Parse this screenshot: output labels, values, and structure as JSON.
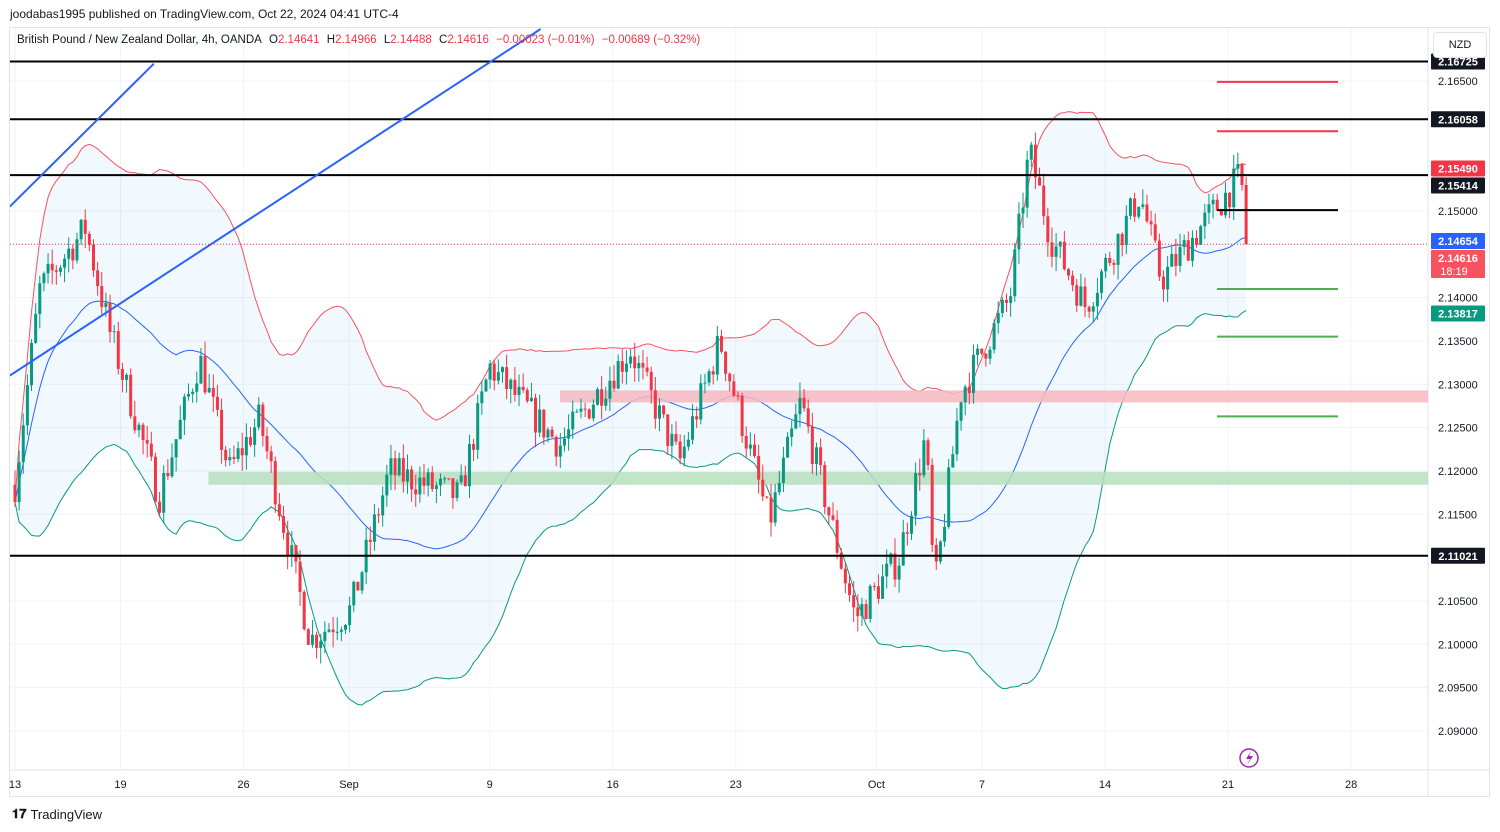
{
  "header": {
    "published": "joodabas1995 published on TradingView.com, Oct 22, 2024 04:41 UTC-4"
  },
  "legend": {
    "symbol": "British Pound / New Zealand Dollar, 4h, OANDA",
    "o_label": "O",
    "o": "2.14641",
    "h_label": "H",
    "h": "2.14966",
    "l_label": "L",
    "l": "2.14488",
    "c_label": "C",
    "c": "2.14616",
    "change": "−0.00023 (−0.01%)",
    "change2": "−0.00689 (−0.32%)"
  },
  "currency_button": "NZD",
  "footer": {
    "brand": "TradingView"
  },
  "chart_data": {
    "type": "candlestick",
    "title": "British Pound / New Zealand Dollar, 4h, OANDA",
    "ylim": [
      2.0875,
      2.1725
    ],
    "y_ticks": [
      "2.16500",
      "2.15000",
      "2.14000",
      "2.13500",
      "2.13000",
      "2.12500",
      "2.12000",
      "2.11500",
      "2.10500",
      "2.10000",
      "2.09500",
      "2.09000"
    ],
    "y_tick_values": [
      2.165,
      2.15,
      2.14,
      2.135,
      2.13,
      2.125,
      2.12,
      2.115,
      2.105,
      2.1,
      2.095,
      2.09
    ],
    "x_ticks": [
      {
        "label": "13",
        "day": 0
      },
      {
        "label": "19",
        "day": 6
      },
      {
        "label": "26",
        "day": 13
      },
      {
        "label": "Sep",
        "day": 19
      },
      {
        "label": "9",
        "day": 27
      },
      {
        "label": "16",
        "day": 34
      },
      {
        "label": "23",
        "day": 41
      },
      {
        "label": "Oct",
        "day": 49
      },
      {
        "label": "7",
        "day": 55
      },
      {
        "label": "14",
        "day": 62
      },
      {
        "label": "21",
        "day": 69
      },
      {
        "label": "28",
        "day": 76
      }
    ],
    "price_path_waypoints": [
      [
        0,
        2.1184
      ],
      [
        1.4,
        2.1409
      ],
      [
        4.0,
        2.148
      ],
      [
        5.4,
        2.136
      ],
      [
        8.2,
        2.117
      ],
      [
        10.5,
        2.133
      ],
      [
        12.2,
        2.12
      ],
      [
        13.9,
        2.126
      ],
      [
        16.8,
        2.1005
      ],
      [
        19.1,
        2.104
      ],
      [
        21.3,
        2.12
      ],
      [
        25.3,
        2.117
      ],
      [
        27.0,
        2.132
      ],
      [
        31.0,
        2.123
      ],
      [
        35.0,
        2.134
      ],
      [
        37.8,
        2.121
      ],
      [
        40.1,
        2.135
      ],
      [
        42.9,
        2.114
      ],
      [
        44.7,
        2.128
      ],
      [
        47.8,
        2.103
      ],
      [
        50.3,
        2.11
      ],
      [
        51.8,
        2.124
      ],
      [
        52.3,
        2.106
      ],
      [
        53.8,
        2.129
      ],
      [
        56.6,
        2.14
      ],
      [
        57.7,
        2.157
      ],
      [
        58.9,
        2.147
      ],
      [
        60.9,
        2.139
      ],
      [
        64.0,
        2.152
      ],
      [
        65.2,
        2.142
      ],
      [
        67.4,
        2.148
      ],
      [
        69.7,
        2.154
      ],
      [
        70.2,
        2.1462
      ]
    ],
    "horizontal_levels": [
      2.16725,
      2.16058,
      2.15414,
      2.11021
    ],
    "target_levels": [
      {
        "price": 2.1649,
        "color": "#f23645"
      },
      {
        "price": 2.1592,
        "color": "#f23645"
      },
      {
        "price": 2.1501,
        "color": "#000000"
      },
      {
        "price": 2.141,
        "color": "#4caf50"
      },
      {
        "price": 2.1355,
        "color": "#4caf50"
      },
      {
        "price": 2.1263,
        "color": "#4caf50"
      }
    ],
    "zones": [
      {
        "from": 2.1279,
        "to": 2.1293,
        "color": "#f7b9bf",
        "start_day": 31
      },
      {
        "from": 2.1184,
        "to": 2.1199,
        "color": "#b7dfbd",
        "start_day": 11
      }
    ],
    "trendlines": [
      [
        [
          -0.3,
          2.1505
        ],
        [
          7.9,
          2.167
        ]
      ],
      [
        [
          -0.3,
          2.131
        ],
        [
          29.9,
          2.171
        ]
      ]
    ],
    "price_tags": [
      {
        "text": "2.16725",
        "bg": "#131722",
        "price": 2.16725
      },
      {
        "text": "2.16058",
        "bg": "#131722",
        "price": 2.16058
      },
      {
        "text": "2.15490",
        "bg": "#f23645",
        "price": 2.1549
      },
      {
        "text": "2.15414",
        "bg": "#131722",
        "price": 2.15414
      },
      {
        "text": "2.14654",
        "bg": "#2962ff",
        "price": 2.14654
      },
      {
        "text": "2.14616",
        "bg": "#f7525f",
        "price": 2.14616,
        "sub": "18:19"
      },
      {
        "text": "2.13817",
        "bg": "#089981",
        "price": 2.13817
      },
      {
        "text": "2.11021",
        "bg": "#131722",
        "price": 2.11021
      }
    ],
    "colors": {
      "up": "#089981",
      "down": "#f23645",
      "bb_upper": "#f7525f",
      "bb_lower": "#089981",
      "basis": "#2962ff",
      "band_fill": "#2196f3"
    }
  }
}
